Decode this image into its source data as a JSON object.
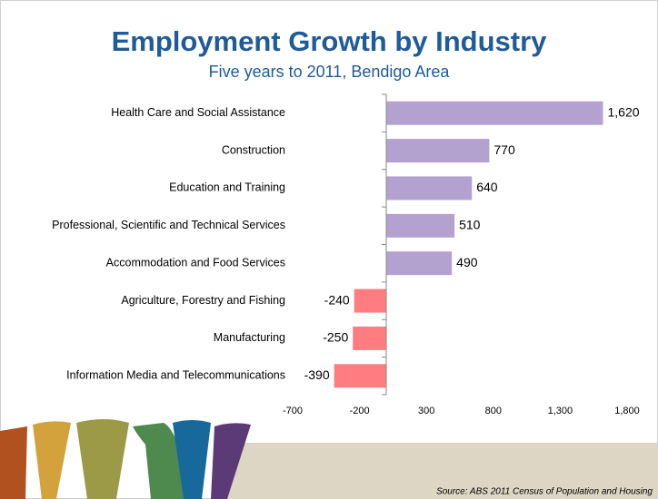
{
  "chart_data": {
    "type": "bar",
    "orientation": "horizontal",
    "title": "Employment Growth by Industry",
    "subtitle": "Five years to 2011, Bendigo Area",
    "categories": [
      "Health Care and Social Assistance",
      "Construction",
      "Education and Training",
      "Professional, Scientific and Technical Services",
      "Accommodation and Food Services",
      "Agriculture, Forestry and Fishing",
      "Manufacturing",
      "Information Media and Telecommunications"
    ],
    "values": [
      1620,
      770,
      640,
      510,
      490,
      -240,
      -250,
      -390
    ],
    "value_labels": [
      "1,620",
      "770",
      "640",
      "510",
      "490",
      "-240",
      "-250",
      "-390"
    ],
    "positive_color": "#b3a2cf",
    "negative_color": "#ff7c80",
    "xlim": [
      -700,
      1800
    ],
    "xticks": [
      -700,
      -200,
      300,
      800,
      {
        "value": 1300,
        "label": "1,300"
      },
      {
        "value": 1800,
        "label": "1,800"
      }
    ],
    "grid": false,
    "source": "Source: ABS 2011 Census of Population and Housing"
  }
}
